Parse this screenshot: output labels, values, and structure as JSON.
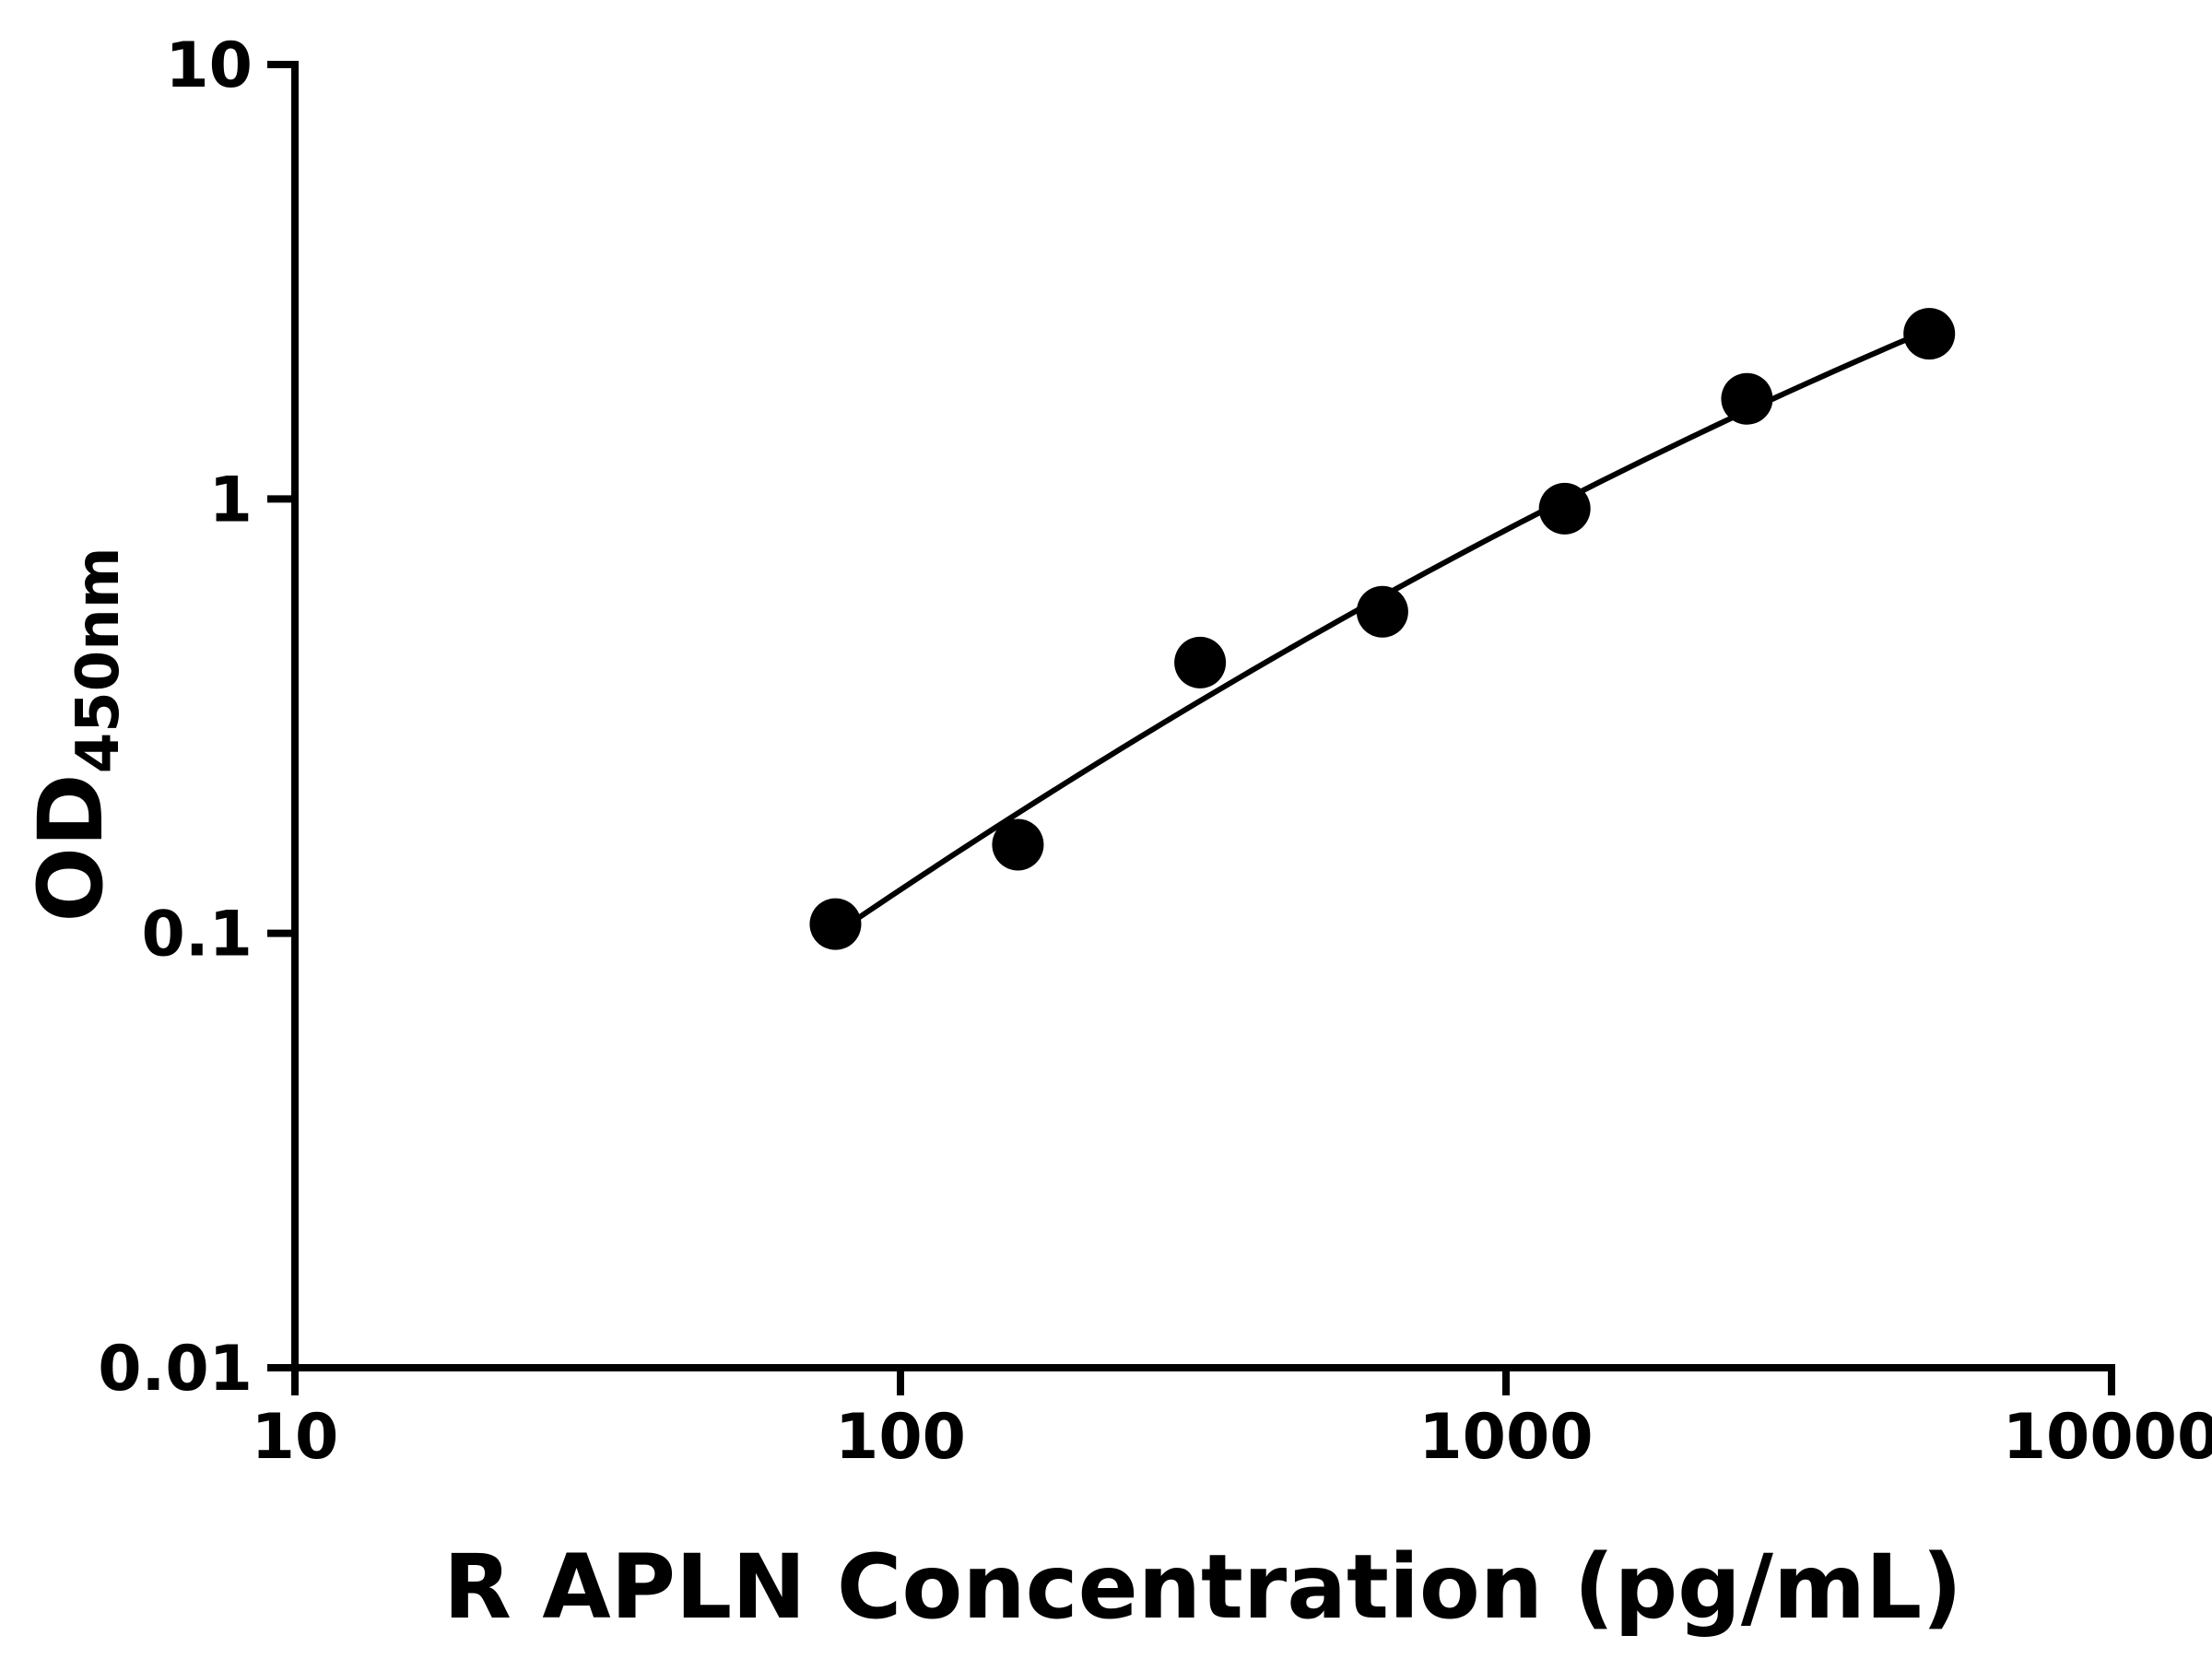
{
  "page": {
    "background": "#ffffff"
  },
  "chart_data": {
    "type": "scatter",
    "title": "",
    "xlabel": "R APLN Concentration (pg/mL)",
    "ylabel": {
      "base": "OD",
      "sub": "450nm"
    },
    "x_scale": "log",
    "y_scale": "log",
    "xlim": [
      10,
      10000
    ],
    "ylim": [
      0.01,
      10
    ],
    "x_ticks": [
      10,
      100,
      1000,
      10000
    ],
    "x_tick_labels": [
      "10",
      "100",
      "1000",
      "10000"
    ],
    "y_ticks": [
      0.01,
      0.1,
      1,
      10
    ],
    "y_tick_labels": [
      "0.01",
      "0.1",
      "1",
      "10"
    ],
    "grid": false,
    "legend": "none",
    "points": [
      {
        "x": 78.1,
        "y": 0.105
      },
      {
        "x": 156.3,
        "y": 0.16
      },
      {
        "x": 312.5,
        "y": 0.42
      },
      {
        "x": 625,
        "y": 0.55
      },
      {
        "x": 1250,
        "y": 0.95
      },
      {
        "x": 2500,
        "y": 1.7
      },
      {
        "x": 5000,
        "y": 2.4
      }
    ],
    "trendline": {
      "type": "log-quadratic-fit",
      "x_start": 78.1,
      "x_end": 5000
    },
    "colors": {
      "background": "#ffffff",
      "axis": "#000000",
      "marker": "#000000",
      "curve": "#000000",
      "text": "#000000"
    }
  }
}
